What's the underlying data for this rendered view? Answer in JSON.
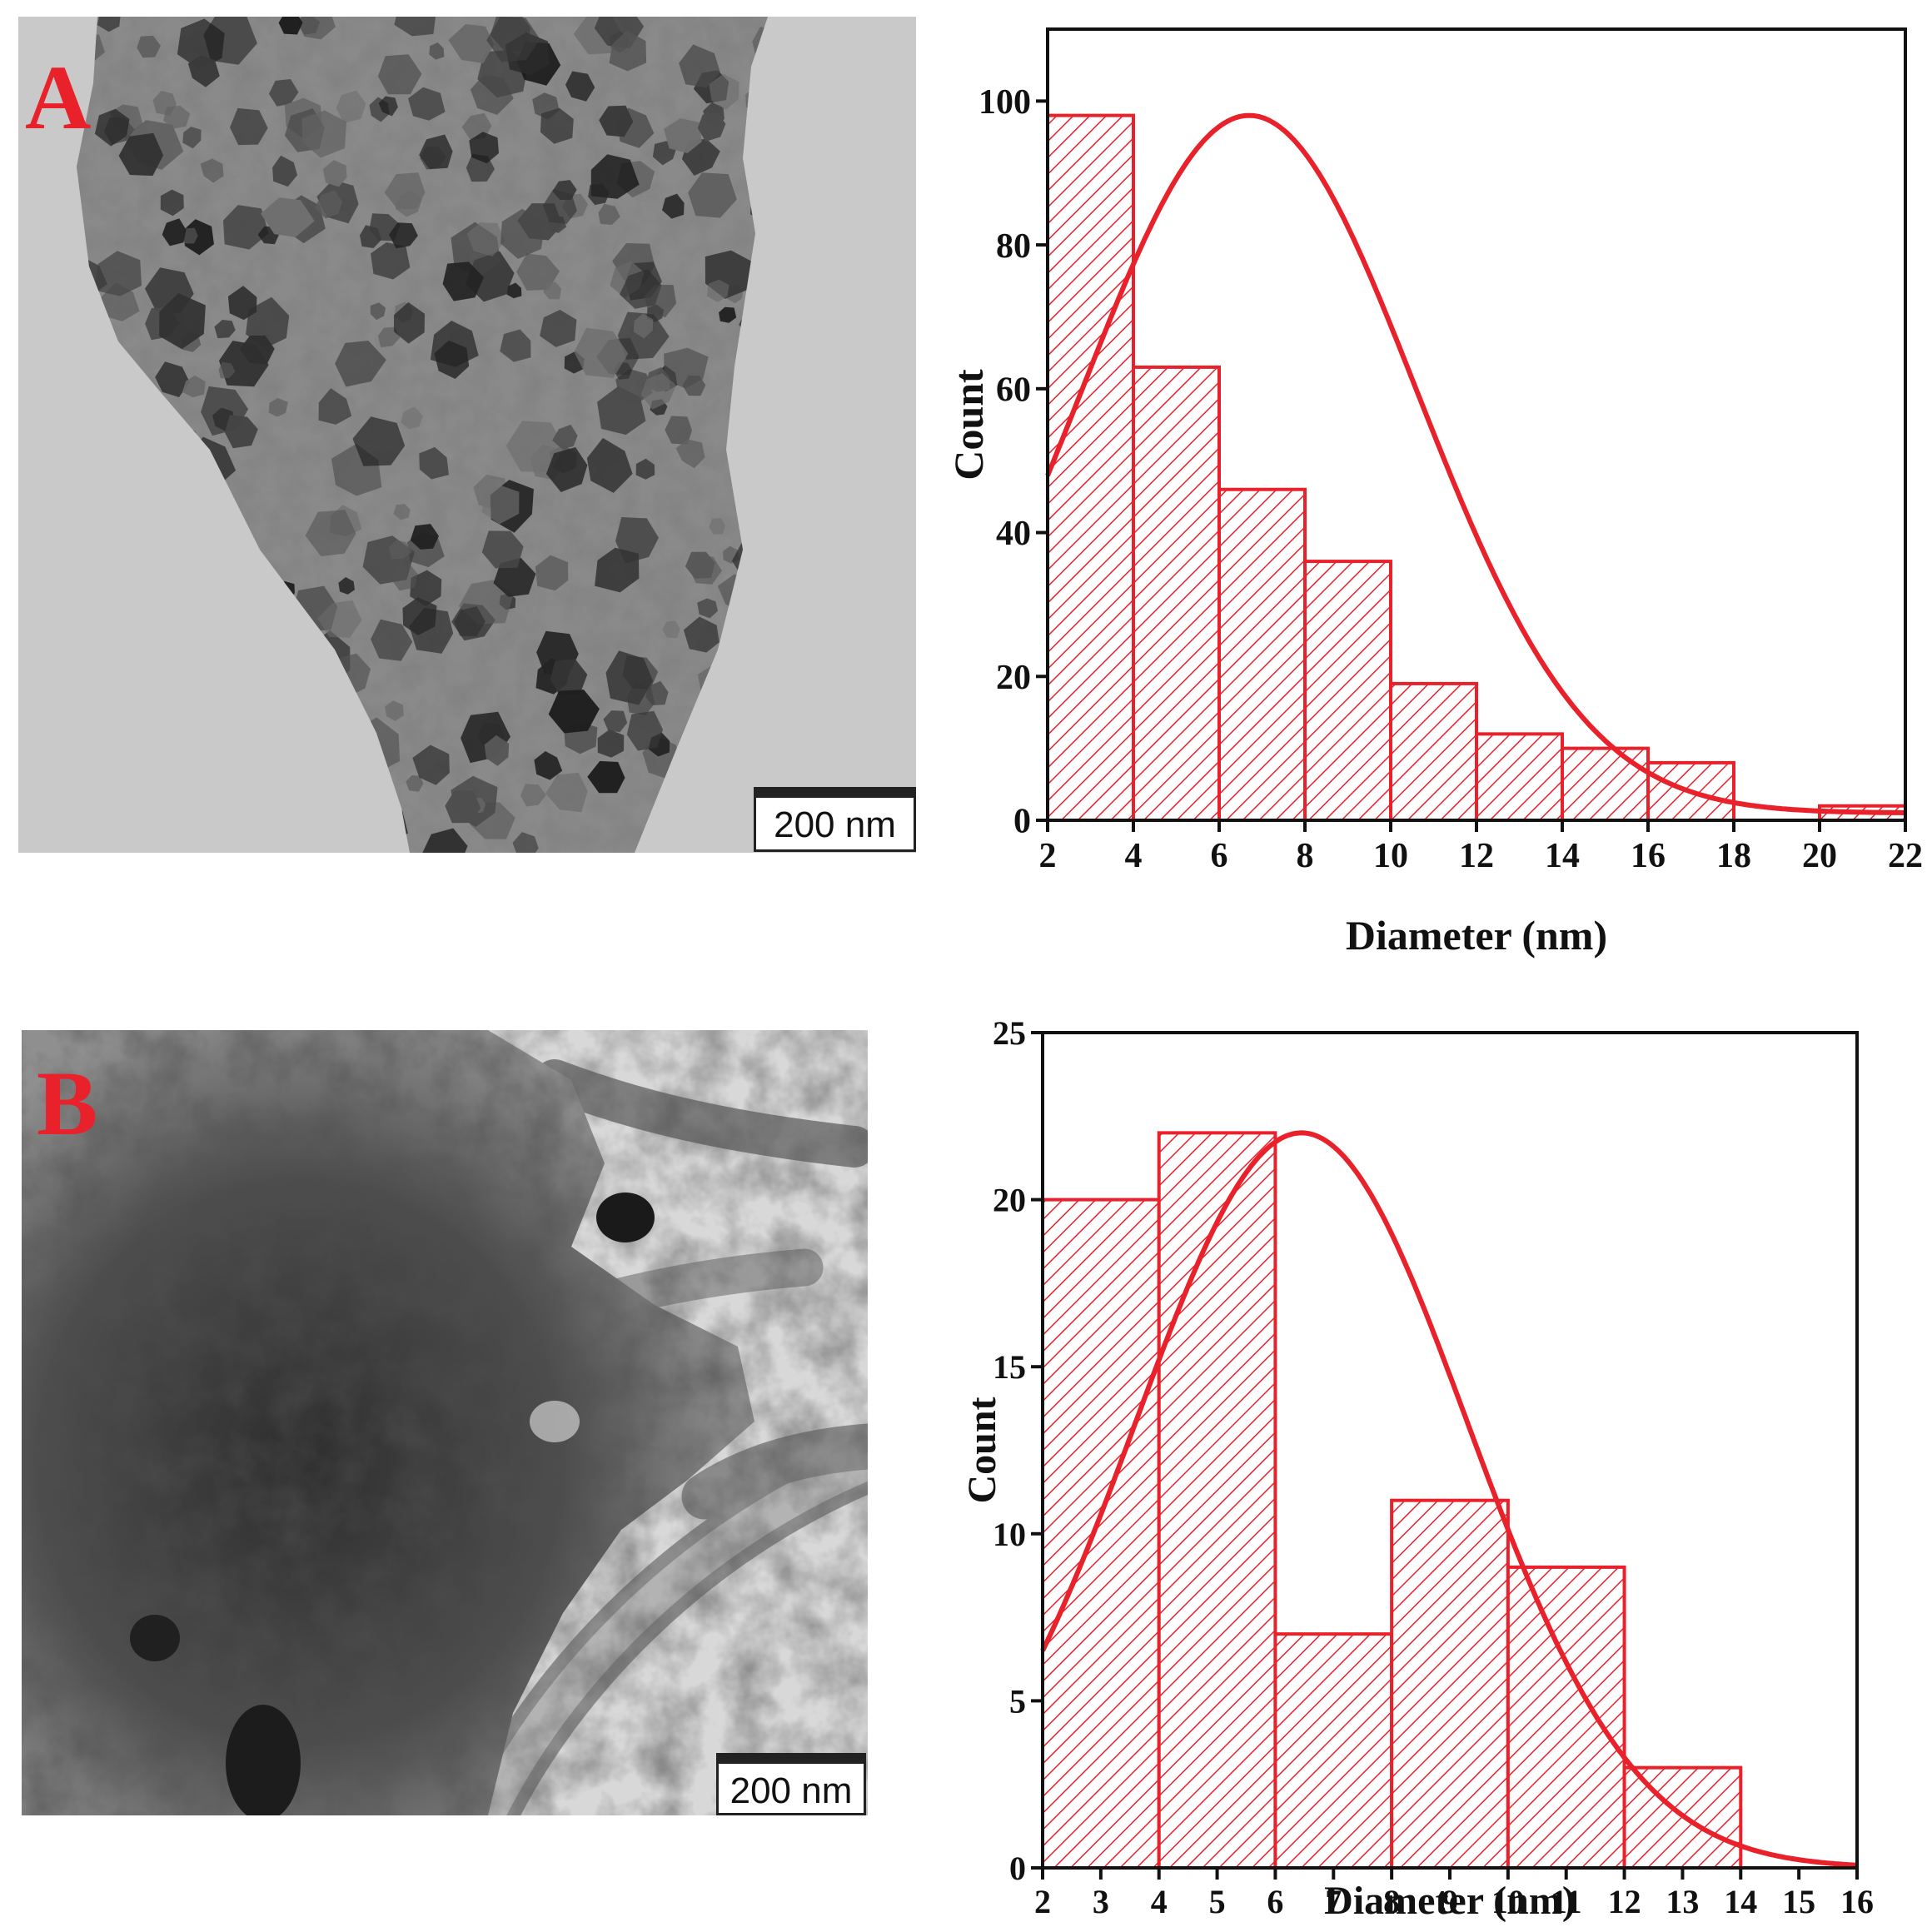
{
  "panels": [
    {
      "letter": "A",
      "scale_bar": "200 nm",
      "chart_data": {
        "type": "bar",
        "xlabel": "Diameter (nm)",
        "ylabel": "Count",
        "xlim": [
          2,
          22
        ],
        "ylim": [
          0,
          110
        ],
        "x_ticks": [
          2,
          4,
          6,
          8,
          10,
          12,
          14,
          16,
          18,
          20,
          22
        ],
        "y_ticks": [
          0,
          20,
          40,
          60,
          80,
          100
        ],
        "bins": [
          {
            "from": 2,
            "to": 4,
            "count": 98
          },
          {
            "from": 4,
            "to": 6,
            "count": 63
          },
          {
            "from": 6,
            "to": 8,
            "count": 46
          },
          {
            "from": 8,
            "to": 10,
            "count": 36
          },
          {
            "from": 10,
            "to": 12,
            "count": 19
          },
          {
            "from": 12,
            "to": 14,
            "count": 12
          },
          {
            "from": 14,
            "to": 16,
            "count": 10
          },
          {
            "from": 16,
            "to": 18,
            "count": 8
          },
          {
            "from": 18,
            "to": 20,
            "count": 0
          },
          {
            "from": 20,
            "to": 22,
            "count": 2
          }
        ],
        "fit_curve": {
          "type": "gaussian",
          "peak_x": 6.7,
          "peak_y": 98,
          "sigma": 3.9,
          "baseline": 1
        },
        "grid": false,
        "bar_color": "#e8212b",
        "fill_pattern": "diagonal-hatch"
      }
    },
    {
      "letter": "B",
      "scale_bar": "200 nm",
      "chart_data": {
        "type": "bar",
        "xlabel": "Diameter (nm)",
        "ylabel": "Count",
        "xlim": [
          2,
          16
        ],
        "ylim": [
          0,
          25
        ],
        "x_ticks": [
          2,
          3,
          4,
          5,
          6,
          7,
          8,
          9,
          10,
          11,
          12,
          13,
          14,
          15,
          16
        ],
        "y_ticks": [
          0,
          5,
          10,
          15,
          20,
          25
        ],
        "bins": [
          {
            "from": 2,
            "to": 4,
            "count": 20
          },
          {
            "from": 4,
            "to": 6,
            "count": 22
          },
          {
            "from": 6,
            "to": 8,
            "count": 7
          },
          {
            "from": 8,
            "to": 10,
            "count": 11
          },
          {
            "from": 10,
            "to": 12,
            "count": 9
          },
          {
            "from": 12,
            "to": 14,
            "count": 3
          }
        ],
        "fit_curve": {
          "type": "gaussian",
          "peak_x": 6.45,
          "peak_y": 22,
          "sigma": 2.85,
          "baseline": 0
        },
        "grid": false,
        "bar_color": "#e8212b",
        "fill_pattern": "diagonal-hatch"
      }
    }
  ]
}
